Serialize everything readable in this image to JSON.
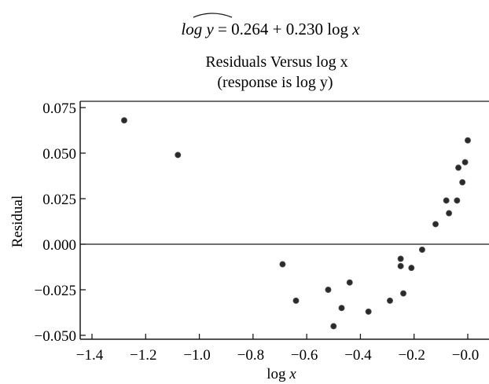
{
  "regression": {
    "lhs": "log y",
    "rest": " = 0.264 + 0.230 log ",
    "var": "x"
  },
  "chart_data": {
    "type": "scatter",
    "title": "Residuals Versus log x",
    "subtitle": "(response is log y)",
    "xlabel": "log x",
    "ylabel": "Residual",
    "xlim": [
      -1.4,
      0.0
    ],
    "ylim": [
      -0.05,
      0.075
    ],
    "xticks": [
      "−1.4",
      "−1.2",
      "−1.0",
      "−0.8",
      "−0.6",
      "−0.4",
      "−0.2",
      "−0.0"
    ],
    "yticks": [
      "0.075",
      "0.050",
      "0.025",
      "0.000",
      "−0.025",
      "−0.050"
    ],
    "reference_line_y": 0.0,
    "grid": false,
    "legend": "none",
    "colors": {
      "points": "#2a2a2a",
      "axes": "#1a1a1a"
    },
    "points": [
      {
        "x": -1.28,
        "y": 0.068
      },
      {
        "x": -1.08,
        "y": 0.049
      },
      {
        "x": -0.69,
        "y": -0.011
      },
      {
        "x": -0.64,
        "y": -0.031
      },
      {
        "x": -0.52,
        "y": -0.025
      },
      {
        "x": -0.5,
        "y": -0.045
      },
      {
        "x": -0.47,
        "y": -0.035
      },
      {
        "x": -0.44,
        "y": -0.021
      },
      {
        "x": -0.37,
        "y": -0.037
      },
      {
        "x": -0.29,
        "y": -0.031
      },
      {
        "x": -0.25,
        "y": -0.012
      },
      {
        "x": -0.25,
        "y": -0.008
      },
      {
        "x": -0.24,
        "y": -0.027
      },
      {
        "x": -0.21,
        "y": -0.013
      },
      {
        "x": -0.17,
        "y": -0.003
      },
      {
        "x": -0.12,
        "y": 0.011
      },
      {
        "x": -0.08,
        "y": 0.024
      },
      {
        "x": -0.07,
        "y": 0.017
      },
      {
        "x": -0.04,
        "y": 0.024
      },
      {
        "x": -0.035,
        "y": 0.042
      },
      {
        "x": -0.02,
        "y": 0.034
      },
      {
        "x": -0.01,
        "y": 0.045
      },
      {
        "x": 0.0,
        "y": 0.057
      }
    ]
  }
}
